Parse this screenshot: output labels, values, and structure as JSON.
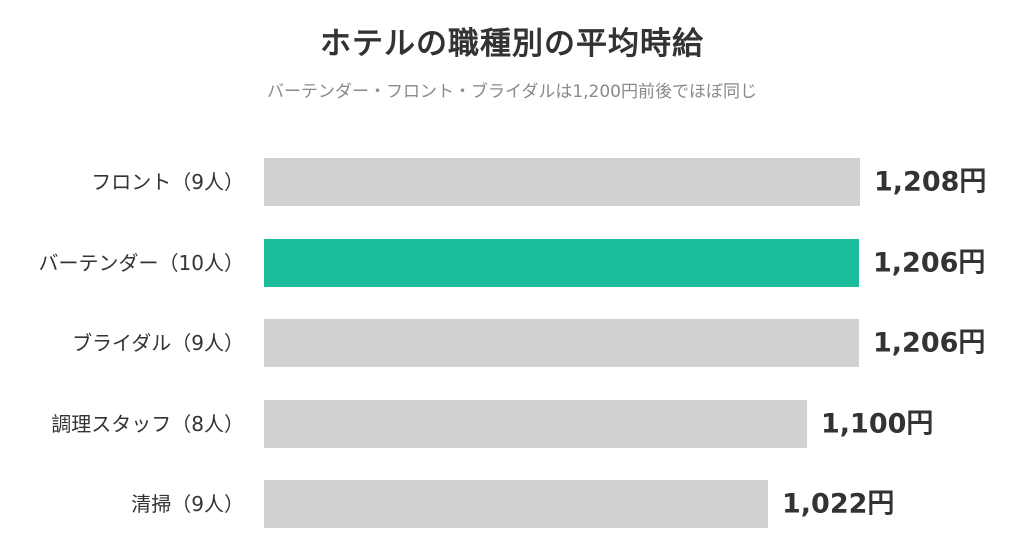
{
  "chart_data": {
    "type": "bar",
    "orientation": "horizontal",
    "title": "ホテルの職種別の平均時給",
    "subtitle": "バーテンダー・フロント・ブライダルは1,200円前後でほぼ同じ",
    "categories": [
      "フロント（9人）",
      "バーテンダー（10人）",
      "ブライダル（9人）",
      "調理スタッフ（8人）",
      "清掃（9人）"
    ],
    "values": [
      1208,
      1206,
      1206,
      1100,
      1022
    ],
    "value_labels": [
      "1,208円",
      "1,206円",
      "1,206円",
      "1,100円",
      "1,022円"
    ],
    "unit": "円",
    "xlim": [
      0,
      1208
    ],
    "highlight_index": 1,
    "grid": false,
    "legend": "none"
  },
  "colors": {
    "bar": "#d1d1d1",
    "highlight": "#1abc9c",
    "text": "#333333",
    "subtitle": "#8a8a8a"
  }
}
